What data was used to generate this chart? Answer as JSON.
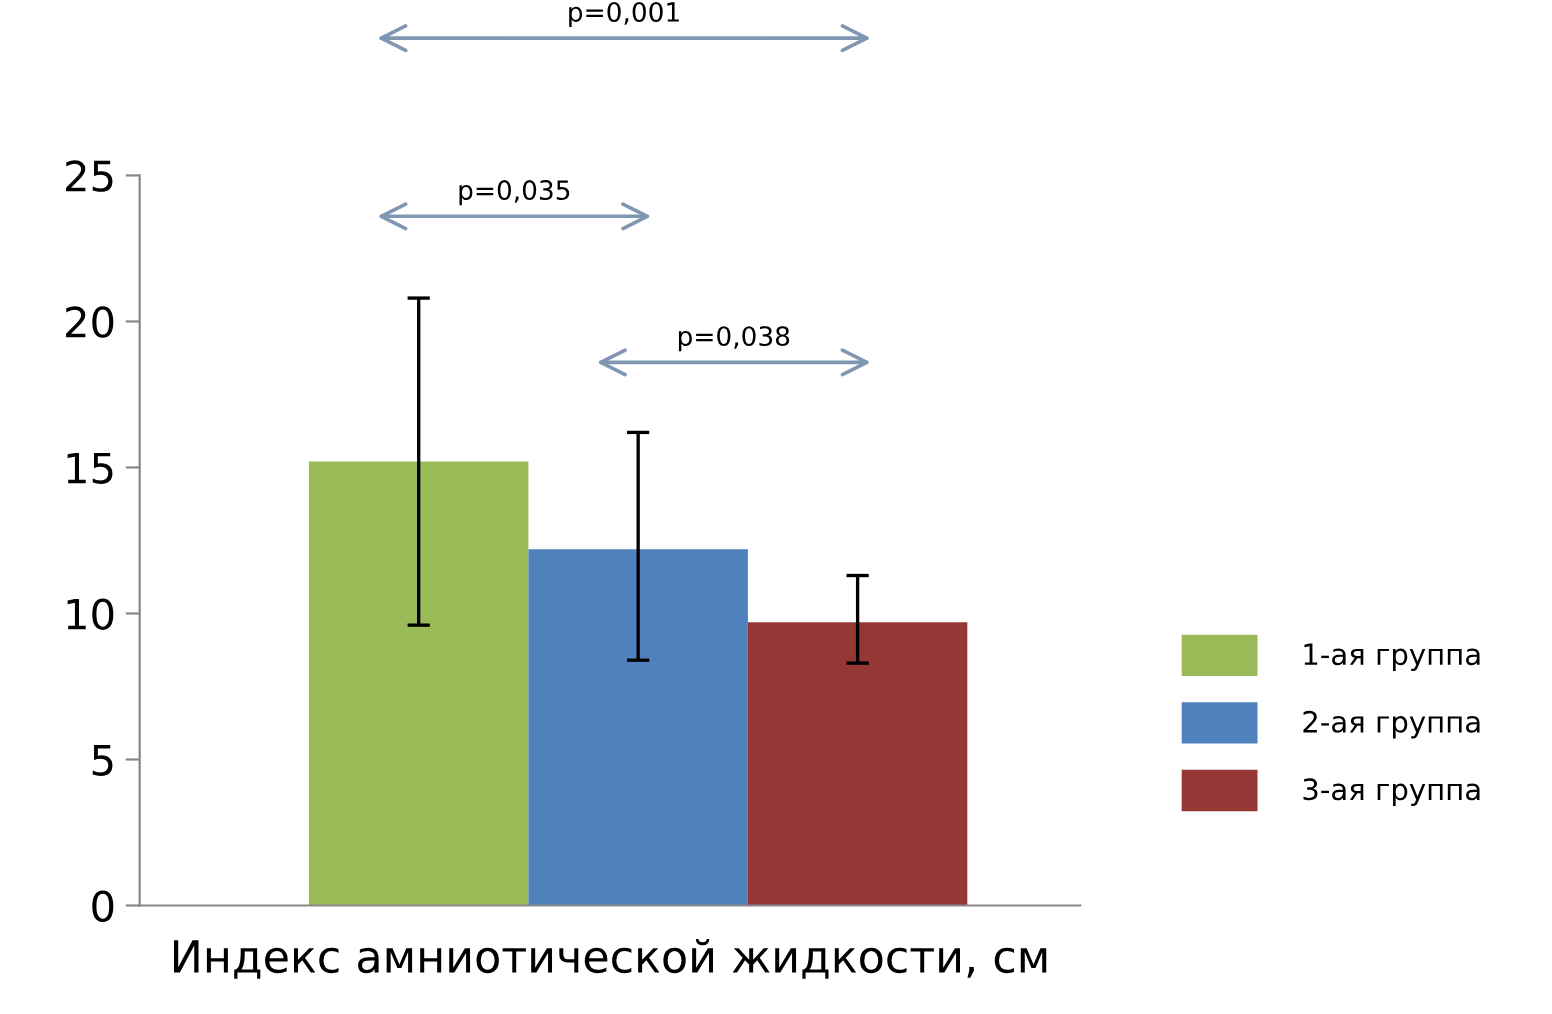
{
  "chart_data": {
    "type": "bar",
    "categories": [
      "Индекс амниотической жидкости, см"
    ],
    "series": [
      {
        "name": "1-ая группа",
        "color": "#9bbb59",
        "values": [
          15.2
        ],
        "errors": [
          [
            9.6,
            20.8
          ]
        ]
      },
      {
        "name": "2-ая группа",
        "color": "#4f81bd",
        "values": [
          12.2
        ],
        "errors": [
          [
            8.4,
            16.2
          ]
        ]
      },
      {
        "name": "3-ая группа",
        "color": "#953735",
        "values": [
          9.7
        ],
        "errors": [
          [
            8.3,
            11.3
          ]
        ]
      }
    ],
    "ylim": [
      0,
      25
    ],
    "yticks": [
      0,
      5,
      10,
      15,
      20,
      25
    ],
    "grid": false,
    "legend": "right",
    "annotations": [
      "p=0,001",
      "p=0,035",
      "p=0,038"
    ]
  }
}
